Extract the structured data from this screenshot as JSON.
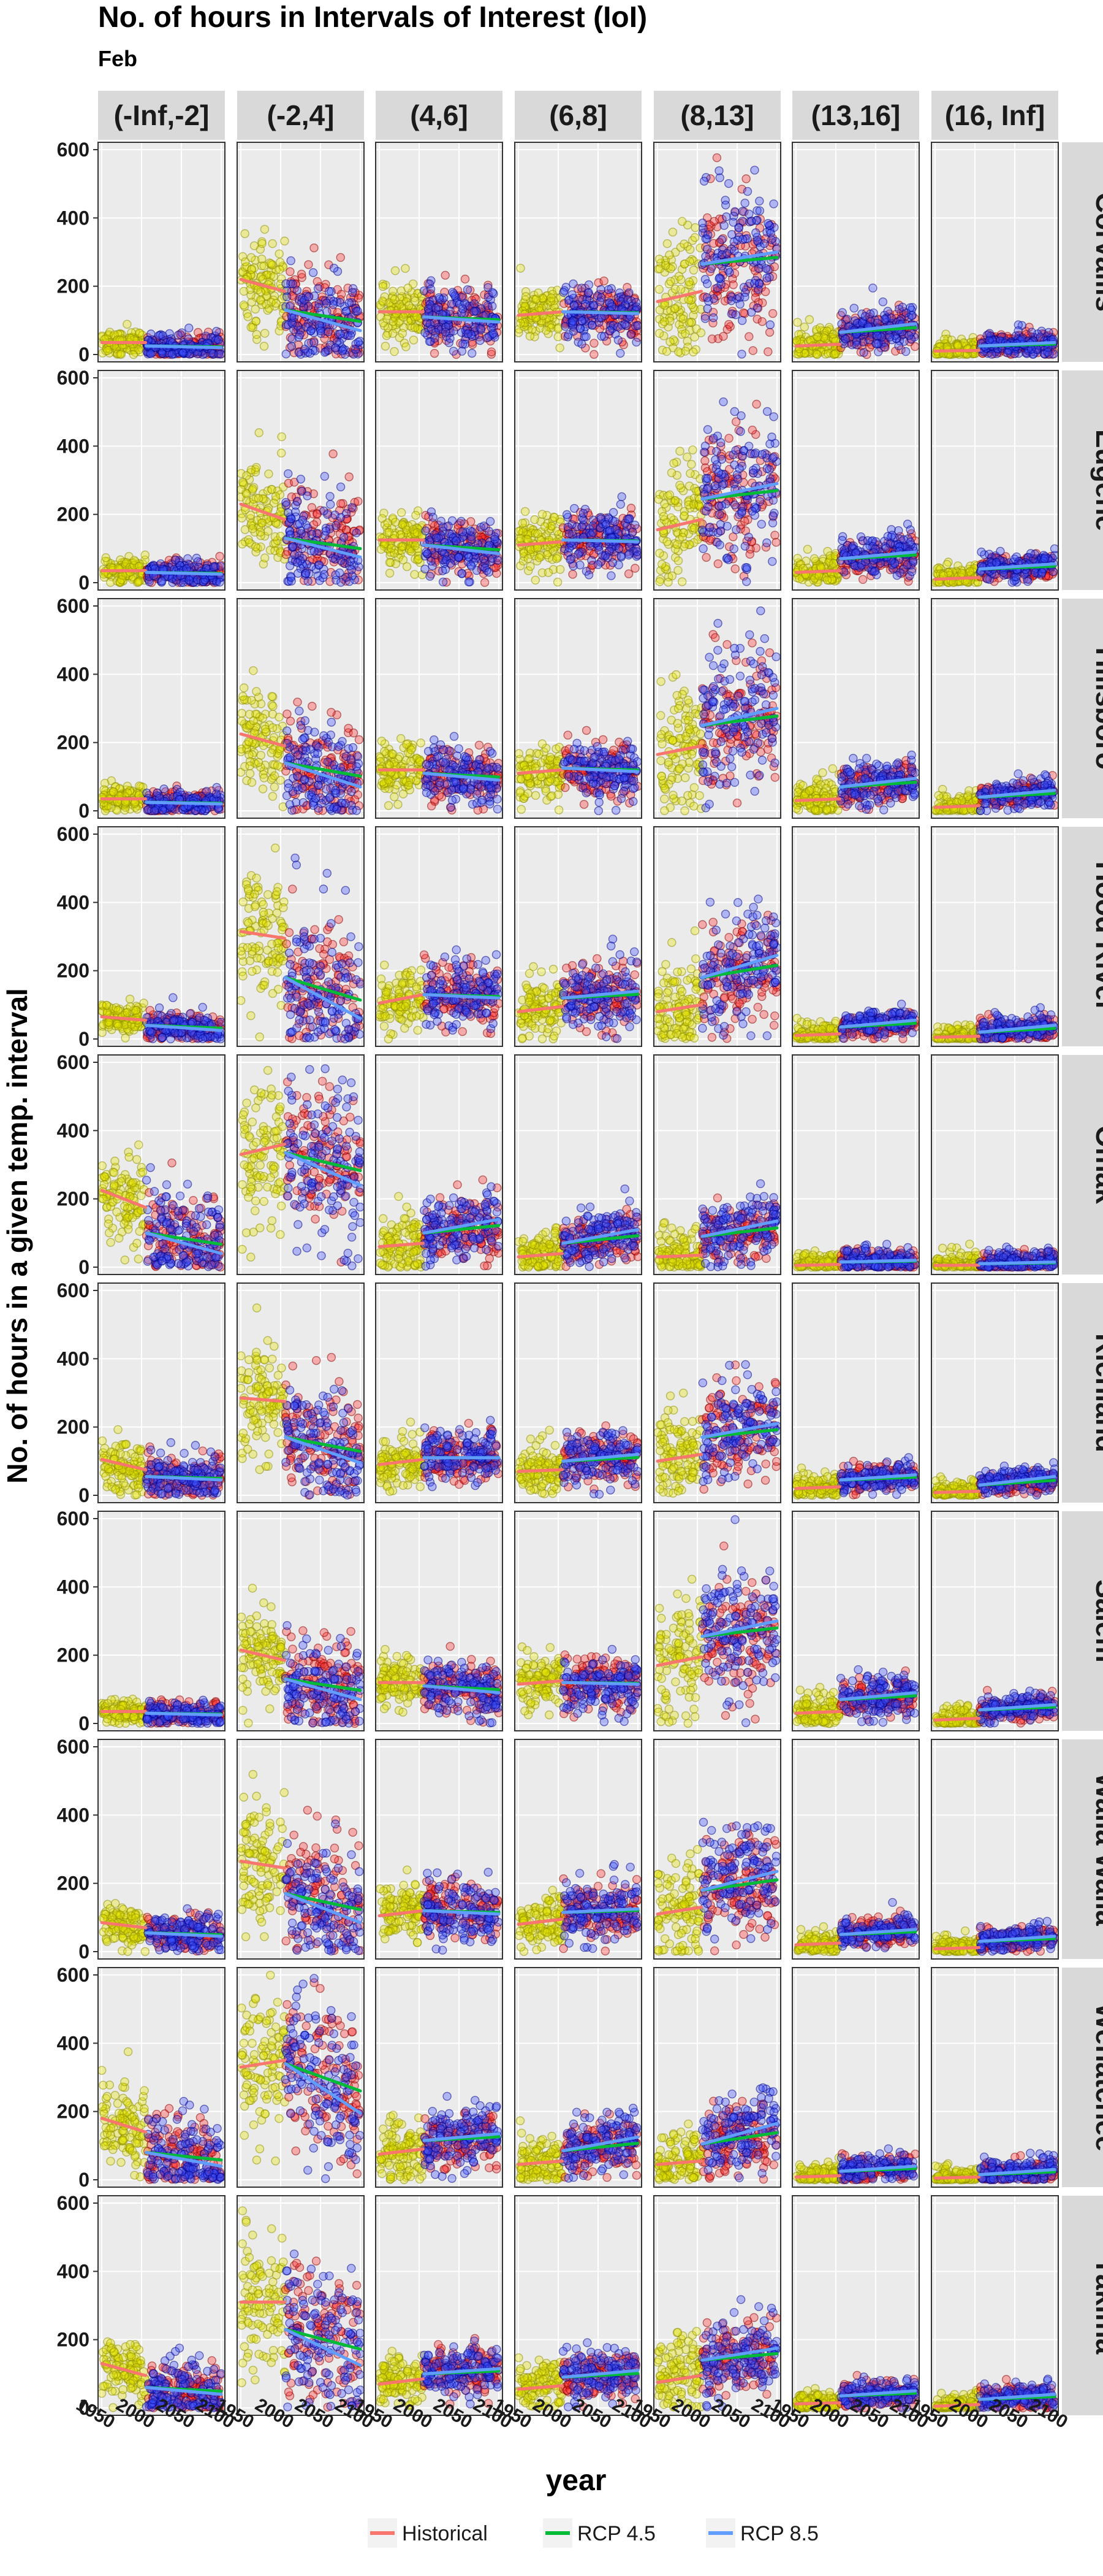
{
  "chart_data": {
    "type": "scatter",
    "title": "No. of hours in Intervals of Interest (IoI)",
    "subtitle": "Feb",
    "xlabel": "year",
    "ylabel": "No. of hours in a given temp. interval",
    "xlim": [
      1950,
      2100
    ],
    "ylim": [
      0,
      600
    ],
    "x_ticks": [
      1950,
      2000,
      2050,
      2100
    ],
    "y_ticks": [
      0,
      200,
      400,
      600
    ],
    "grid": true,
    "legend_position": "bottom",
    "intervals": [
      "(-Inf,-2]",
      "(-2,4]",
      "(4,6]",
      "(6,8]",
      "(8,13]",
      "(13,16]",
      "(16, Inf]"
    ],
    "locations": [
      "Corvallis",
      "Eugene",
      "Hillsboro",
      "Hood River",
      "Omak",
      "Richland",
      "Salem",
      "Walla Walla",
      "Wenatchee",
      "Yakima"
    ],
    "series": [
      {
        "name": "Historical",
        "line_color": "#f8766d",
        "point_fill": "#e6e600",
        "point_stroke": "#8c8c00"
      },
      {
        "name": "RCP 4.5",
        "line_color": "#00ba38",
        "point_fill": "#ff3030",
        "point_stroke": "#8b0000"
      },
      {
        "name": "RCP 8.5",
        "line_color": "#619cff",
        "point_fill": "#3c50ff",
        "point_stroke": "#00008b"
      }
    ],
    "trend_values": {
      "Corvallis": [
        [
          35,
          35,
          25,
          20
        ],
        [
          220,
          185,
          130,
          70
        ],
        [
          125,
          125,
          110,
          95
        ],
        [
          115,
          125,
          125,
          120
        ],
        [
          155,
          185,
          265,
          300
        ],
        [
          25,
          30,
          65,
          90
        ],
        [
          10,
          12,
          25,
          35
        ]
      ],
      "Eugene": [
        [
          35,
          35,
          30,
          25
        ],
        [
          230,
          185,
          130,
          75
        ],
        [
          125,
          125,
          110,
          85
        ],
        [
          110,
          120,
          125,
          120
        ],
        [
          155,
          185,
          245,
          290
        ],
        [
          30,
          35,
          70,
          90
        ],
        [
          10,
          15,
          40,
          55
        ]
      ],
      "Hillsboro": [
        [
          35,
          35,
          25,
          20
        ],
        [
          225,
          190,
          140,
          70
        ],
        [
          120,
          120,
          110,
          90
        ],
        [
          110,
          120,
          125,
          115
        ],
        [
          165,
          190,
          250,
          300
        ],
        [
          30,
          35,
          70,
          95
        ],
        [
          10,
          15,
          40,
          60
        ]
      ],
      "Hood River": [
        [
          65,
          55,
          40,
          25
        ],
        [
          315,
          295,
          180,
          60
        ],
        [
          105,
          130,
          130,
          120
        ],
        [
          80,
          95,
          120,
          140
        ],
        [
          80,
          100,
          180,
          245
        ],
        [
          10,
          15,
          35,
          55
        ],
        [
          5,
          8,
          20,
          40
        ]
      ],
      "Omak": [
        [
          225,
          175,
          100,
          40
        ],
        [
          330,
          360,
          335,
          240
        ],
        [
          60,
          70,
          100,
          140
        ],
        [
          30,
          40,
          70,
          110
        ],
        [
          30,
          35,
          90,
          135
        ],
        [
          5,
          8,
          15,
          20
        ],
        [
          5,
          6,
          10,
          15
        ]
      ],
      "Richland": [
        [
          105,
          75,
          55,
          45
        ],
        [
          285,
          275,
          170,
          95
        ],
        [
          90,
          105,
          110,
          110
        ],
        [
          70,
          75,
          100,
          120
        ],
        [
          100,
          120,
          170,
          210
        ],
        [
          20,
          25,
          45,
          60
        ],
        [
          8,
          12,
          30,
          55
        ]
      ],
      "Salem": [
        [
          35,
          35,
          30,
          25
        ],
        [
          215,
          185,
          130,
          70
        ],
        [
          120,
          120,
          110,
          90
        ],
        [
          115,
          125,
          120,
          115
        ],
        [
          170,
          195,
          255,
          300
        ],
        [
          30,
          35,
          70,
          90
        ],
        [
          10,
          15,
          40,
          55
        ]
      ],
      "Walla Walla": [
        [
          85,
          70,
          55,
          45
        ],
        [
          265,
          245,
          170,
          85
        ],
        [
          105,
          120,
          120,
          110
        ],
        [
          80,
          95,
          115,
          125
        ],
        [
          110,
          130,
          180,
          235
        ],
        [
          20,
          25,
          50,
          65
        ],
        [
          8,
          12,
          30,
          45
        ]
      ],
      "Wenatchee": [
        [
          180,
          140,
          80,
          40
        ],
        [
          330,
          350,
          340,
          195
        ],
        [
          75,
          90,
          115,
          135
        ],
        [
          45,
          55,
          85,
          125
        ],
        [
          45,
          55,
          105,
          165
        ],
        [
          8,
          12,
          25,
          40
        ],
        [
          5,
          8,
          15,
          30
        ]
      ],
      "Yakima": [
        [
          130,
          95,
          60,
          40
        ],
        [
          310,
          310,
          230,
          125
        ],
        [
          70,
          85,
          100,
          115
        ],
        [
          55,
          65,
          90,
          110
        ],
        [
          75,
          95,
          140,
          175
        ],
        [
          12,
          15,
          35,
          50
        ],
        [
          5,
          10,
          25,
          40
        ]
      ]
    }
  }
}
